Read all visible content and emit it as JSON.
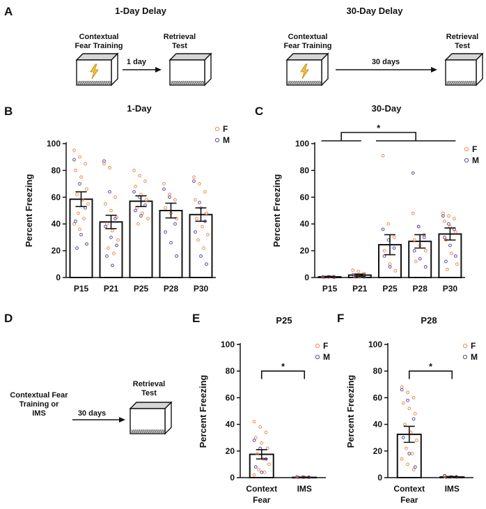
{
  "panels": {
    "A": {
      "letter": "A",
      "left": {
        "title": "1-Day Delay",
        "from": "Contextual\nFear Training",
        "arrow": "1 day",
        "to": "Retrieval\nTest"
      },
      "right": {
        "title": "30-Day Delay",
        "from": "Contextual\nFear Training",
        "arrow": "30 days",
        "to": "Retrieval\nTest"
      }
    },
    "D": {
      "letter": "D",
      "from": "Contextual Fear\nTraining or\nIMS",
      "arrow": "30 days",
      "to": "Retrieval\nTest"
    }
  },
  "legend": {
    "f": "F",
    "m": "M"
  },
  "colors": {
    "female": "#f08a4b",
    "male": "#5a4a9c",
    "lightning": "#f5c33b"
  },
  "chart_data": [
    {
      "letter": "B",
      "type": "bar",
      "title": "1-Day",
      "ylabel": "Percent Freezing",
      "ylim": [
        0,
        100
      ],
      "yticks": [
        0,
        20,
        40,
        60,
        80,
        100
      ],
      "categories": [
        "P15",
        "P21",
        "P25",
        "P28",
        "P30"
      ],
      "values": [
        58.5,
        41.5,
        57,
        50,
        47
      ],
      "sem": [
        5.5,
        5,
        4,
        5.5,
        5
      ],
      "points_f": [
        [
          95,
          90,
          85,
          80,
          75,
          66,
          62,
          58,
          55,
          48,
          44,
          40,
          36
        ],
        [
          85,
          82,
          60,
          55,
          50,
          45,
          40,
          35,
          28,
          22,
          18
        ],
        [
          80,
          76,
          72,
          68,
          62,
          58,
          52,
          48,
          44,
          40
        ],
        [
          70,
          62,
          58,
          52,
          48,
          44
        ],
        [
          75,
          70,
          64,
          58,
          52,
          48,
          44,
          38,
          32,
          28,
          22
        ]
      ],
      "points_m": [
        [
          88,
          70,
          52,
          42,
          32,
          25,
          22
        ],
        [
          87,
          64,
          44,
          38,
          30,
          24,
          16,
          9
        ],
        [
          64,
          60,
          54,
          50,
          46
        ],
        [
          66,
          60,
          40,
          34,
          26,
          16
        ],
        [
          72,
          56,
          42,
          34,
          16,
          10
        ]
      ],
      "significance": null
    },
    {
      "letter": "C",
      "type": "bar",
      "title": "30-Day",
      "ylabel": "Percent Freezing",
      "ylim": [
        0,
        100
      ],
      "yticks": [
        0,
        20,
        40,
        60,
        80,
        100
      ],
      "categories": [
        "P15",
        "P21",
        "P25",
        "P28",
        "P30"
      ],
      "values": [
        0.5,
        1.8,
        24.5,
        27,
        32.5
      ],
      "sem": [
        0.3,
        0.8,
        7.5,
        5,
        4.5
      ],
      "points_f": [
        [
          0.5,
          0.3,
          0.8,
          0.2,
          0.6
        ],
        [
          5.5,
          4.5,
          3,
          1,
          0.5
        ],
        [
          91,
          40,
          30,
          20,
          10,
          5
        ],
        [
          48,
          38,
          32,
          28,
          24,
          20,
          12
        ],
        [
          48,
          46,
          44,
          42,
          38,
          34,
          28,
          18,
          10,
          6
        ]
      ],
      "points_m": [
        [
          0.4,
          0.6,
          0.2
        ],
        [
          2,
          1,
          0.5
        ],
        [
          36,
          28,
          22,
          16,
          8
        ],
        [
          78,
          38,
          30,
          20,
          14,
          8
        ],
        [
          46,
          40,
          36,
          30,
          24,
          16,
          12
        ]
      ],
      "significance": {
        "label": "*",
        "left_groups": [
          0,
          1
        ],
        "right_groups": [
          2,
          4
        ]
      }
    },
    {
      "letter": "E",
      "type": "bar",
      "title": "P25",
      "ylabel": "Percent Freezing",
      "ylim": [
        0,
        100
      ],
      "yticks": [
        0,
        20,
        40,
        60,
        80,
        100
      ],
      "categories": [
        "Context\nFear",
        "IMS"
      ],
      "values": [
        17.5,
        0.2
      ],
      "sem": [
        3.5,
        0.2
      ],
      "points_f": [
        [
          42,
          38,
          34,
          30,
          26,
          22,
          18,
          14,
          10,
          6,
          4,
          2
        ],
        [
          0.5,
          0.3,
          0.4,
          0.2,
          0.3
        ]
      ],
      "points_m": [
        [
          28,
          22,
          14,
          8,
          4
        ],
        [
          0.5,
          0.4,
          0.3
        ]
      ],
      "significance": {
        "label": "*",
        "left_groups": [
          0,
          0
        ],
        "right_groups": [
          1,
          1
        ]
      }
    },
    {
      "letter": "F",
      "type": "bar",
      "title": "P28",
      "ylabel": "Percent Freezing",
      "ylim": [
        0,
        100
      ],
      "yticks": [
        0,
        20,
        40,
        60,
        80,
        100
      ],
      "categories": [
        "Context\nFear",
        "IMS"
      ],
      "values": [
        32.5,
        0.5
      ],
      "sem": [
        6,
        0.3
      ],
      "points_f": [
        [
          68,
          64,
          60,
          56,
          52,
          48,
          40,
          34,
          28,
          22,
          18,
          14,
          10,
          6
        ],
        [
          1,
          0.5,
          0.8,
          0.3,
          0.6
        ]
      ],
      "points_m": [
        [
          66,
          58,
          44,
          30,
          18,
          8
        ],
        [
          1.5,
          0.5,
          0.4
        ]
      ],
      "significance": {
        "label": "*",
        "left_groups": [
          0,
          0
        ],
        "right_groups": [
          1,
          1
        ]
      }
    }
  ]
}
